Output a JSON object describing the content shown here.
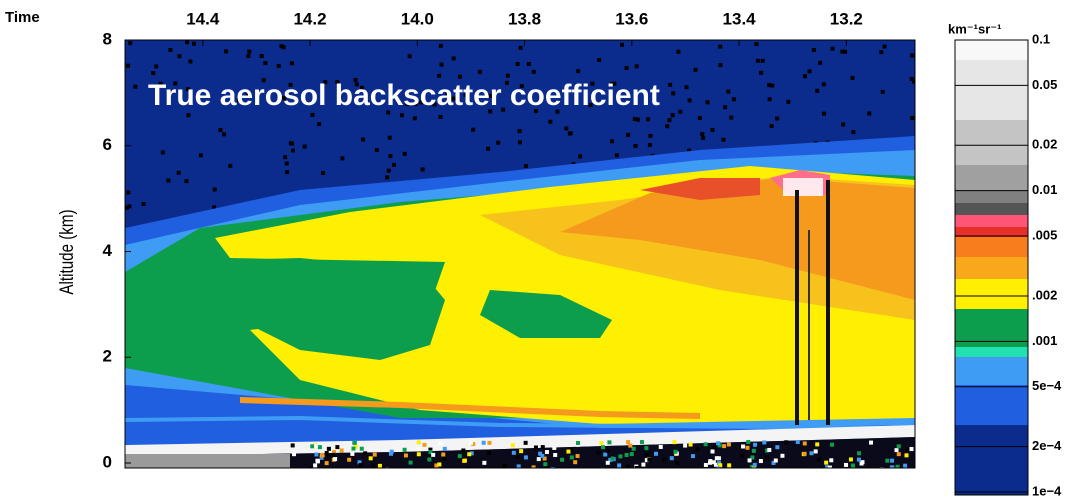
{
  "chart_data": {
    "type": "heatmap",
    "title": "True aerosol backscatter coefficient",
    "x_label": "Time",
    "y_label": "Altitude (km)",
    "xlim": [
      14.545,
      13.072
    ],
    "xticks": [
      14.4,
      14.2,
      {
        "value": 14.0,
        "label": "14.0"
      },
      13.8,
      13.6,
      13.4,
      13.2
    ],
    "ylim": [
      0,
      8
    ],
    "yticks": [
      0,
      2,
      4,
      6,
      8
    ],
    "colorbar": {
      "label": "km⁻¹sr⁻¹",
      "scale": "log",
      "lim": [
        0.0001,
        0.1
      ],
      "ticks": [
        0.1,
        0.05,
        0.02,
        0.01,
        {
          "value": 0.005,
          "label": ".005"
        },
        {
          "value": 0.002,
          "label": ".002"
        },
        {
          "value": 0.001,
          "label": ".001"
        },
        {
          "value": 0.0005,
          "label": "5e−4"
        },
        {
          "value": 0.0002,
          "label": "2e−4"
        },
        {
          "value": 0.0001,
          "label": "1e−4"
        }
      ]
    }
  }
}
